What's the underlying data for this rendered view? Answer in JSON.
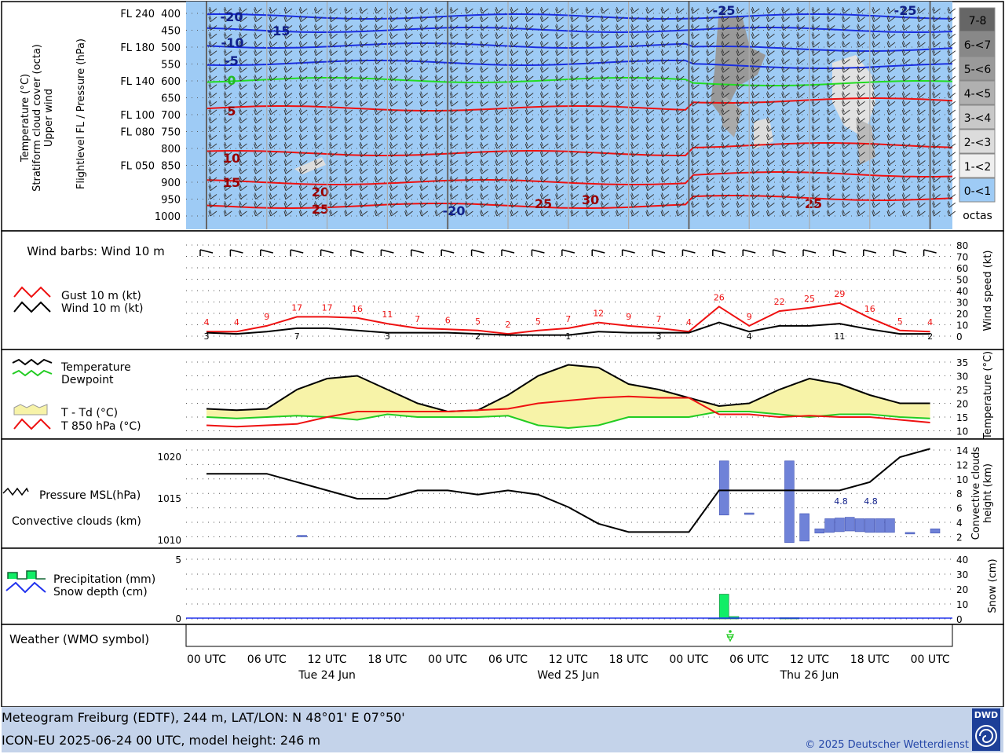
{
  "colors": {
    "upper_bg": "#9ecbf5",
    "temp": "#000000",
    "dew": "#22cc22",
    "t850": "#ee1111",
    "spread": "#f7f3a8",
    "gust": "#ee1111",
    "wind": "#000000",
    "conv": "#6f82d8",
    "precip": "#11ee66",
    "snow": "#2233ee",
    "footer": "#c4d3ea",
    "iso_cold": "#1a2fe0",
    "iso_zero": "#22dd22",
    "iso_warm": "#ee1111"
  },
  "upper": {
    "left_labels": [
      "Temperature (°C)",
      "Stratiform cloud cover (octa)",
      "Upper wind"
    ],
    "axis_label": "Flightlevel FL / Pressure (hPa)",
    "levels": [
      {
        "p": "400",
        "fl": "FL 240"
      },
      {
        "p": "450",
        "fl": ""
      },
      {
        "p": "500",
        "fl": "FL 180"
      },
      {
        "p": "550",
        "fl": ""
      },
      {
        "p": "600",
        "fl": "FL 140"
      },
      {
        "p": "650",
        "fl": ""
      },
      {
        "p": "700",
        "fl": "FL 100"
      },
      {
        "p": "750",
        "fl": "FL 080"
      },
      {
        "p": "800",
        "fl": ""
      },
      {
        "p": "850",
        "fl": "FL 050"
      },
      {
        "p": "900",
        "fl": ""
      },
      {
        "p": "950",
        "fl": ""
      },
      {
        "p": "1000",
        "fl": ""
      }
    ],
    "cloud_legend": [
      "7-8",
      "6-<7",
      "5-<6",
      "4-<5",
      "3-<4",
      "2-<3",
      "1-<2",
      "0-<1",
      "octas"
    ],
    "iso_labels": [
      "-20",
      "-15",
      "-10",
      "-5",
      "0",
      "5",
      "10",
      "15",
      "20",
      "25",
      "-20",
      "25",
      "30",
      "25",
      "-25",
      "-25"
    ]
  },
  "wind": {
    "barb_title": "Wind barbs: Wind 10 m",
    "legend": [
      "Gust 10 m (kt)",
      "Wind 10 m (kt)"
    ],
    "axis_label": "Wind speed (kt)",
    "ticks": [
      "80",
      "70",
      "60",
      "50",
      "40",
      "30",
      "20",
      "10",
      "0"
    ]
  },
  "temp": {
    "legend": [
      "Temperature",
      "Dewpoint",
      "T - Td (°C)",
      "T 850 hPa (°C)"
    ],
    "axis_label": "Temperature (°C)",
    "ticks": [
      "35",
      "30",
      "25",
      "20",
      "15",
      "10"
    ]
  },
  "pres": {
    "legend": [
      "Pressure MSL(hPa)",
      "Convective clouds (km)"
    ],
    "left_ticks": [
      "1020",
      "1015",
      "1010"
    ],
    "right_ticks": [
      "14",
      "12",
      "10",
      "8",
      "6",
      "4",
      "2"
    ],
    "axis_label": [
      "Convective clouds",
      "height (km)"
    ],
    "conv_labels": [
      "4.8",
      "4.8"
    ]
  },
  "precip": {
    "legend": [
      "Precipitation (mm)",
      "Snow depth (cm)"
    ],
    "left_ticks": [
      "5",
      "0"
    ],
    "right_ticks": [
      "40",
      "30",
      "20",
      "10",
      "0"
    ],
    "axis_label": "Snow (cm)"
  },
  "weather": {
    "label": "Weather (WMO symbol)"
  },
  "time_axis": {
    "ticks": [
      "00 UTC",
      "06 UTC",
      "12 UTC",
      "18 UTC",
      "00 UTC",
      "06 UTC",
      "12 UTC",
      "18 UTC",
      "00 UTC",
      "06 UTC",
      "12 UTC",
      "18 UTC",
      "00 UTC"
    ],
    "days": [
      "Tue 24 Jun",
      "Wed 25 Jun",
      "Thu 26 Jun"
    ]
  },
  "footer": {
    "line1": "Meteogram Freiburg (EDTF), 244 m, LAT/LON: N 48°01' E 07°50'",
    "line2": "ICON-EU 2025-06-24 00 UTC, model height: 246 m",
    "copyright": "© 2025 Deutscher Wetterdienst",
    "logo": "DWD"
  },
  "chart_data": [
    {
      "type": "line",
      "title": "",
      "x_unit": "hours since 2025-06-24 00 UTC",
      "x": [
        0,
        3,
        6,
        9,
        12,
        15,
        18,
        21,
        24,
        27,
        30,
        33,
        36,
        39,
        42,
        45,
        48,
        51,
        54,
        57,
        60,
        63,
        66,
        69,
        72
      ],
      "series": [
        {
          "name": "Gust 10 m (kt)",
          "values": [
            4,
            4,
            9,
            17,
            17,
            16,
            11,
            7,
            6,
            5,
            2,
            5,
            7,
            12,
            9,
            7,
            4,
            26,
            9,
            22,
            25,
            29,
            16,
            5,
            4
          ]
        },
        {
          "name": "Wind 10 m (kt)",
          "values": [
            3,
            2,
            4,
            7,
            7,
            5,
            3,
            3,
            3,
            2,
            1,
            1,
            1,
            4,
            3,
            3,
            3,
            12,
            4,
            9,
            9,
            11,
            6,
            2,
            2
          ]
        }
      ],
      "ylabel": "Wind speed (kt)",
      "ylim": [
        0,
        80
      ]
    },
    {
      "type": "line",
      "x": [
        0,
        3,
        6,
        9,
        12,
        15,
        18,
        21,
        24,
        27,
        30,
        33,
        36,
        39,
        42,
        45,
        48,
        51,
        54,
        57,
        60,
        63,
        66,
        69,
        72
      ],
      "series": [
        {
          "name": "Temperature",
          "values": [
            18,
            17.5,
            18,
            25,
            29,
            30,
            25,
            20,
            17,
            17.5,
            23,
            30,
            34,
            33,
            27,
            25,
            22,
            19,
            20,
            25,
            29,
            27,
            23,
            20,
            20
          ]
        },
        {
          "name": "Dewpoint",
          "values": [
            15,
            14.5,
            15,
            15.5,
            15,
            14,
            16,
            15,
            15,
            15,
            15.5,
            12,
            11,
            12,
            15,
            15,
            15,
            17,
            17,
            16,
            15,
            16,
            16,
            15,
            14.5
          ]
        },
        {
          "name": "T 850 hPa (°C)",
          "values": [
            12,
            11.5,
            12,
            12.5,
            15,
            17,
            17,
            17,
            17,
            17.5,
            18,
            20,
            21,
            22,
            22.5,
            22,
            22,
            16,
            16,
            15,
            15.5,
            15,
            15,
            14,
            13
          ]
        }
      ],
      "ylabel": "Temperature (°C)",
      "ylim": [
        8,
        36
      ]
    },
    {
      "type": "line",
      "x": [
        0,
        3,
        6,
        9,
        12,
        15,
        18,
        21,
        24,
        27,
        30,
        33,
        36,
        39,
        42,
        45,
        48,
        51,
        54,
        57,
        60,
        63,
        66,
        69,
        72
      ],
      "series": [
        {
          "name": "Pressure MSL(hPa)",
          "values": [
            1018,
            1018,
            1018,
            1017,
            1016,
            1015,
            1015,
            1016,
            1016,
            1015.5,
            1016,
            1015.5,
            1014,
            1012,
            1011,
            1011,
            1011,
            1016,
            1016,
            1016,
            1016,
            1016,
            1017,
            1020,
            1021
          ]
        }
      ],
      "ylabel": "hPa",
      "ylim": [
        1010,
        1022
      ]
    },
    {
      "type": "bar",
      "title": "",
      "x_unit": "hours since 2025-06-24 00 UTC",
      "x": [
        9.5,
        51.5,
        54,
        58,
        59.5,
        61,
        62,
        63,
        64,
        65,
        66,
        67,
        68,
        70,
        72.5
      ],
      "base": [
        2.2,
        5,
        5.2,
        1.2,
        1.4,
        2.5,
        2.6,
        2.7,
        2.8,
        2.7,
        2.6,
        2.6,
        2.6,
        2.5,
        2.5
      ],
      "top": [
        2.2,
        12.5,
        5.3,
        12.5,
        5.2,
        3.1,
        4.5,
        4.6,
        4.7,
        4.5,
        4.5,
        4.5,
        4.5,
        2.6,
        3.1
      ],
      "ylabel": "Convective clouds height (km)",
      "ylim": [
        0,
        14
      ]
    },
    {
      "type": "bar",
      "x": [
        50.5,
        51.5,
        52.5,
        57.5,
        58.5
      ],
      "values": [
        0.08,
        2.1,
        0.2,
        0.1,
        0.1
      ],
      "ylabel": "Precipitation (mm)",
      "ylim": [
        0,
        5.5
      ]
    }
  ]
}
